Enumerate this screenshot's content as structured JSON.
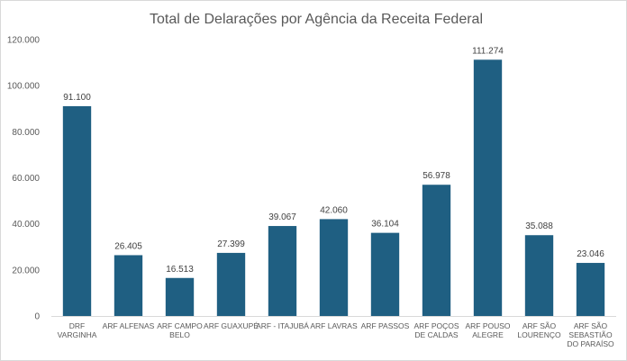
{
  "chart_data": {
    "type": "bar",
    "title": "Total de Delarações por Agência da Receita Federal",
    "xlabel": "",
    "ylabel": "",
    "ylim": [
      0,
      120000
    ],
    "yticks": [
      0,
      20000,
      40000,
      60000,
      80000,
      100000,
      120000
    ],
    "ytick_labels": [
      "0",
      "20.000",
      "40.000",
      "60.000",
      "80.000",
      "100.000",
      "120.000"
    ],
    "grid": false,
    "legend": "none",
    "bar_color": "#1F5F82",
    "categories": [
      [
        "DRF",
        "VARGINHA"
      ],
      [
        "ARF ALFENAS"
      ],
      [
        "ARF CAMPO",
        "BELO"
      ],
      [
        "ARF GUAXUPÉ"
      ],
      [
        "ARF - ITAJUBÁ"
      ],
      [
        "ARF LAVRAS"
      ],
      [
        "ARF PASSOS"
      ],
      [
        "ARF POÇOS",
        "DE CALDAS"
      ],
      [
        "ARF POUSO",
        "ALEGRE"
      ],
      [
        "ARF SÃO",
        "LOURENÇO"
      ],
      [
        "ARF SÃO",
        "SEBASTIÃO",
        "DO PARAÍSO"
      ]
    ],
    "values": [
      91100,
      26405,
      16513,
      27399,
      39067,
      42060,
      36104,
      56978,
      111274,
      35088,
      23046
    ],
    "data_labels": [
      "91.100",
      "26.405",
      "16.513",
      "27.399",
      "39.067",
      "42.060",
      "36.104",
      "56.978",
      "111.274",
      "35.088",
      "23.046"
    ]
  }
}
